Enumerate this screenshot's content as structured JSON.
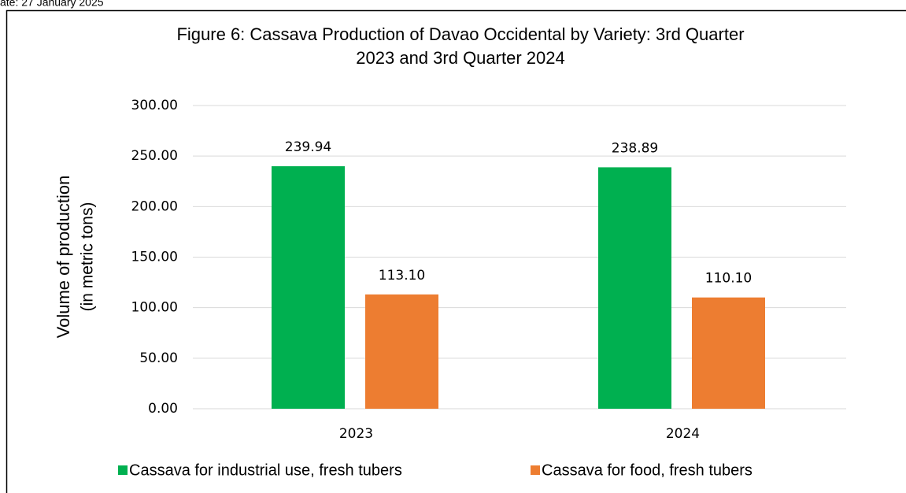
{
  "date_line": "ate: 27 January 2025",
  "chart_data": {
    "type": "bar",
    "title": [
      "Figure 6: Cassava Production of Davao Occidental by Variety: 3rd Quarter",
      "2023 and 3rd Quarter 2024"
    ],
    "y_label": [
      "Volume of production",
      "(in metric tons)"
    ],
    "categories": [
      "2023",
      "2024"
    ],
    "series": [
      {
        "name": "Cassava for industrial use, fresh tubers",
        "color": "#00b050",
        "values": [
          239.94,
          238.89
        ],
        "value_labels": [
          "239.94",
          "238.89"
        ]
      },
      {
        "name": "Cassava for food, fresh tubers",
        "color": "#ed7d31",
        "values": [
          113.1,
          110.1
        ],
        "value_labels": [
          "113.10",
          "110.10"
        ]
      }
    ],
    "ylim": [
      0,
      300
    ],
    "yticks": [
      {
        "value": 0,
        "label": "0.00"
      },
      {
        "value": 50,
        "label": "50.00"
      },
      {
        "value": 100,
        "label": "100.00"
      },
      {
        "value": 150,
        "label": "150.00"
      },
      {
        "value": 200,
        "label": "200.00"
      },
      {
        "value": 250,
        "label": "250.00"
      },
      {
        "value": 300,
        "label": "300.00"
      }
    ],
    "grid": true,
    "legend": "bottom"
  }
}
